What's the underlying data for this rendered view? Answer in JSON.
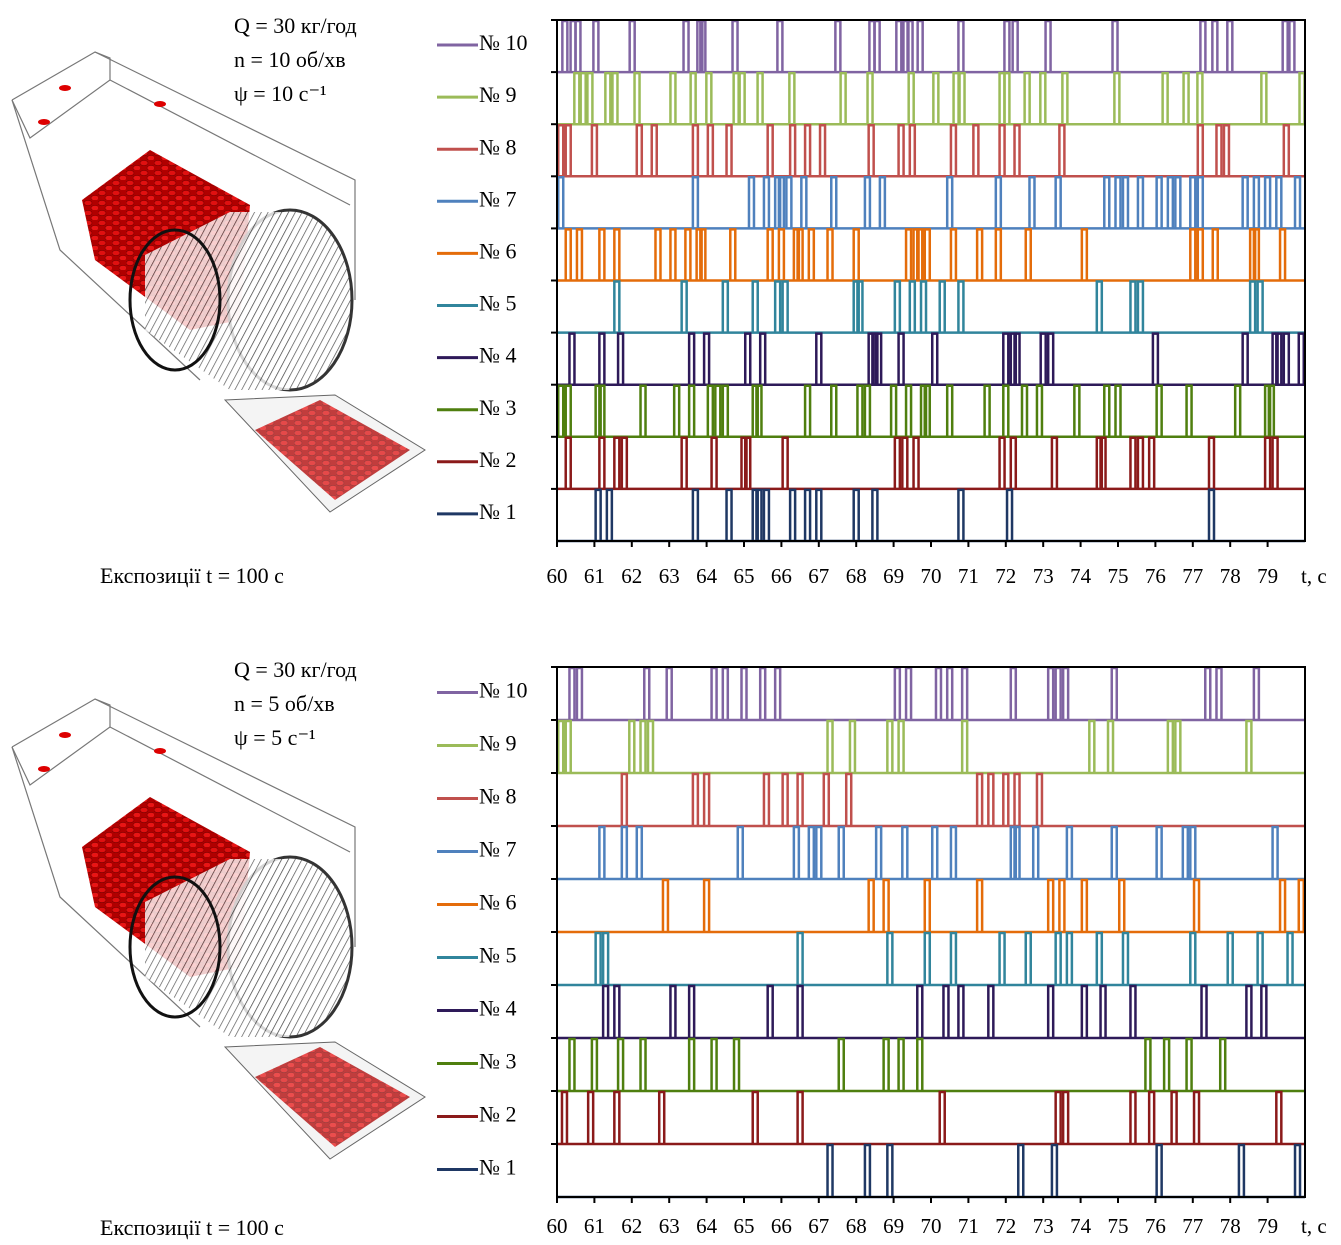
{
  "chart_data": [
    {
      "type": "pulse",
      "annotations": [
        "Q = 30 кг/год",
        "n = 10 об/хв",
        "ψ = 10 с⁻¹"
      ],
      "caption": "Експозиції t = 100 с",
      "x_label": "t, c",
      "xlim": [
        60,
        80
      ],
      "xticks": [
        60,
        61,
        62,
        63,
        64,
        65,
        66,
        67,
        68,
        69,
        70,
        71,
        72,
        73,
        74,
        75,
        76,
        77,
        78,
        79
      ],
      "series": [
        {
          "name": "№ 10",
          "color": "#8064a2",
          "values": [
            60.21,
            60.43,
            60.56,
            61.04,
            62.01,
            63.45,
            63.82,
            63.9,
            64.76,
            65.96,
            67.51,
            68.42,
            68.56,
            69.14,
            69.33,
            69.44,
            69.71,
            70.8,
            72.03,
            72.25,
            73.13,
            74.92,
            77.27,
            77.59,
            77.99,
            79.47,
            79.65
          ]
        },
        {
          "name": "№ 9",
          "color": "#9bbb59",
          "values": [
            60.53,
            60.7,
            60.88,
            61.36,
            61.55,
            62.14,
            63.1,
            63.64,
            64.06,
            64.79,
            64.95,
            65.43,
            66.28,
            67.65,
            68.37,
            69.47,
            70.13,
            70.67,
            70.83,
            71.9,
            72.03,
            72.57,
            72.99,
            73.58,
            74.97,
            76.26,
            76.82,
            77.19,
            78.9,
            79.92
          ]
        },
        {
          "name": "№ 8",
          "color": "#c0504d",
          "values": [
            60.1,
            60.3,
            61.0,
            62.2,
            62.6,
            63.7,
            64.1,
            64.6,
            65.7,
            66.3,
            66.7,
            67.1,
            68.4,
            69.2,
            69.5,
            70.6,
            71.2,
            71.9,
            72.3,
            73.5,
            77.2,
            77.7,
            77.9,
            79.5
          ]
        },
        {
          "name": "№ 7",
          "color": "#4f81bd",
          "values": [
            60.1,
            63.7,
            65.2,
            65.6,
            65.9,
            66.0,
            66.2,
            66.6,
            67.4,
            68.3,
            68.7,
            70.5,
            71.8,
            72.7,
            73.4,
            74.7,
            75.0,
            75.2,
            75.6,
            76.1,
            76.4,
            76.6,
            77.0,
            77.2,
            78.4,
            78.7,
            79.0,
            79.3,
            79.8
          ]
        },
        {
          "name": "№ 6",
          "color": "#e46c0a",
          "values": [
            60.3,
            60.6,
            61.2,
            61.6,
            62.7,
            63.1,
            63.5,
            63.8,
            63.9,
            64.7,
            65.7,
            66.0,
            66.4,
            66.5,
            66.8,
            67.3,
            68.0,
            69.4,
            69.6,
            69.7,
            69.9,
            70.6,
            71.3,
            71.8,
            72.6,
            74.1,
            77.0,
            77.2,
            77.6,
            78.6,
            78.7,
            79.4
          ]
        },
        {
          "name": "№ 5",
          "color": "#31859c",
          "values": [
            61.6,
            63.4,
            64.5,
            65.3,
            65.9,
            66.1,
            68.0,
            68.1,
            69.1,
            69.5,
            69.8,
            70.3,
            70.8,
            74.5,
            75.4,
            75.6,
            78.6,
            78.8
          ]
        },
        {
          "name": "№ 4",
          "color": "#2e1a59",
          "values": [
            60.4,
            61.2,
            61.7,
            63.6,
            64.0,
            65.1,
            65.5,
            67.0,
            68.4,
            68.5,
            68.6,
            69.2,
            70.1,
            72.0,
            72.2,
            72.3,
            73.0,
            73.2,
            76.0,
            78.4,
            79.2,
            79.3,
            79.5,
            79.9
          ]
        },
        {
          "name": "№ 3",
          "color": "#4f7f0f",
          "values": [
            60.1,
            60.3,
            61.1,
            61.2,
            62.3,
            63.2,
            63.6,
            64.1,
            64.3,
            64.5,
            65.3,
            65.4,
            66.7,
            67.4,
            68.1,
            68.3,
            69.0,
            69.4,
            69.8,
            69.9,
            70.5,
            71.5,
            72.0,
            72.5,
            72.9,
            73.9,
            74.7,
            75.0,
            76.1,
            76.9,
            78.2,
            79.0,
            79.1
          ]
        },
        {
          "name": "№ 2",
          "color": "#8b1a1a",
          "values": [
            60.3,
            61.2,
            61.6,
            61.8,
            63.4,
            64.2,
            65.0,
            65.1,
            66.1,
            69.1,
            69.3,
            69.6,
            71.9,
            72.2,
            73.3,
            74.5,
            74.6,
            75.4,
            75.6,
            75.9,
            77.5,
            79.0,
            79.2
          ]
        },
        {
          "name": "№ 1",
          "color": "#1f3864",
          "values": [
            61.1,
            61.4,
            63.7,
            64.6,
            65.3,
            65.4,
            65.6,
            66.3,
            66.7,
            67.0,
            68.0,
            68.5,
            70.8,
            72.1,
            77.5
          ]
        }
      ]
    },
    {
      "type": "pulse",
      "annotations": [
        "Q = 30 кг/год",
        "n = 5 об/хв",
        "ψ = 5 с⁻¹"
      ],
      "caption": "Експозиції t = 100 с",
      "x_label": "t, c",
      "xlim": [
        60,
        80
      ],
      "xticks": [
        60,
        61,
        62,
        63,
        64,
        65,
        66,
        67,
        68,
        69,
        70,
        71,
        72,
        73,
        74,
        75,
        76,
        77,
        78,
        79
      ],
      "series": [
        {
          "name": "№ 10",
          "color": "#8064a2",
          "values": [
            60.4,
            60.6,
            62.4,
            63.0,
            64.2,
            64.5,
            65.0,
            65.5,
            65.9,
            69.1,
            69.4,
            70.2,
            70.5,
            70.9,
            72.2,
            73.2,
            73.4,
            73.6,
            74.9,
            77.4,
            77.7,
            78.7
          ]
        },
        {
          "name": "№ 9",
          "color": "#9bbb59",
          "values": [
            60.1,
            60.3,
            62.0,
            62.3,
            62.5,
            67.3,
            67.9,
            68.9,
            69.2,
            70.9,
            74.3,
            74.8,
            76.4,
            76.6,
            78.5
          ]
        },
        {
          "name": "№ 8",
          "color": "#c0504d",
          "values": [
            61.8,
            63.7,
            64.0,
            65.6,
            66.1,
            66.5,
            67.2,
            67.8,
            71.3,
            71.6,
            72.0,
            72.3,
            72.9
          ]
        },
        {
          "name": "№ 7",
          "color": "#4f81bd",
          "values": [
            61.2,
            61.8,
            62.2,
            64.9,
            66.4,
            66.8,
            67.0,
            67.6,
            68.6,
            69.3,
            70.1,
            70.6,
            72.2,
            72.3,
            72.8,
            73.7,
            74.9,
            76.1,
            76.8,
            77.0,
            79.2
          ]
        },
        {
          "name": "№ 6",
          "color": "#e46c0a",
          "values": [
            62.9,
            64.0,
            68.4,
            68.8,
            69.9,
            71.3,
            73.2,
            73.5,
            74.1,
            75.1,
            77.1,
            79.4,
            79.9
          ]
        },
        {
          "name": "№ 5",
          "color": "#31859c",
          "values": [
            61.1,
            61.3,
            66.5,
            68.9,
            69.9,
            70.6,
            71.9,
            72.6,
            73.4,
            73.7,
            74.5,
            75.2,
            77.0,
            78.0,
            78.8,
            79.6
          ]
        },
        {
          "name": "№ 4",
          "color": "#2e1a59",
          "values": [
            61.3,
            61.6,
            63.1,
            63.6,
            65.7,
            66.5,
            69.7,
            70.4,
            70.8,
            71.6,
            73.2,
            74.1,
            74.6,
            75.4,
            77.3,
            78.5,
            78.9
          ]
        },
        {
          "name": "№ 3",
          "color": "#4f7f0f",
          "values": [
            60.4,
            61.0,
            61.7,
            62.3,
            63.6,
            64.2,
            64.8,
            67.6,
            68.8,
            69.2,
            69.7,
            75.8,
            76.3,
            76.9,
            77.8
          ]
        },
        {
          "name": "№ 2",
          "color": "#8b1a1a",
          "values": [
            60.2,
            60.9,
            61.6,
            62.8,
            65.3,
            66.5,
            70.3,
            73.4,
            73.6,
            75.4,
            75.9,
            76.5,
            77.1,
            79.3
          ]
        },
        {
          "name": "№ 1",
          "color": "#1f3864",
          "values": [
            67.3,
            68.3,
            68.9,
            72.4,
            73.3,
            76.1,
            78.3,
            79.8
          ]
        }
      ]
    }
  ]
}
